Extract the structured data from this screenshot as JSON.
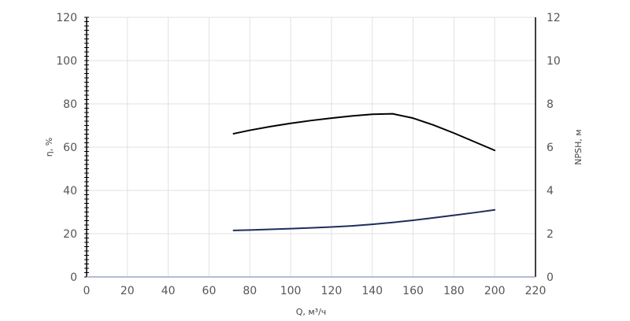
{
  "chart_data": {
    "type": "line",
    "title": "",
    "xlabel": "Q, м³/ч",
    "ylabel_left": "η, %",
    "ylabel_right": "NPSH, м",
    "xlim": [
      0,
      220
    ],
    "ylim_left": [
      0,
      120
    ],
    "ylim_right": [
      0,
      12
    ],
    "x_ticks": [
      0,
      20,
      40,
      60,
      80,
      100,
      120,
      140,
      160,
      180,
      200,
      220
    ],
    "y_left_ticks": [
      0,
      20,
      40,
      60,
      80,
      100,
      120
    ],
    "y_right_ticks": [
      0,
      2,
      4,
      6,
      8,
      10,
      12
    ],
    "grid": true,
    "series": [
      {
        "axis": "left",
        "color": "#000000",
        "x": [
          72,
          80,
          90,
          100,
          110,
          120,
          130,
          140,
          150,
          160,
          170,
          180,
          190,
          200
        ],
        "y": [
          66.2,
          67.8,
          69.5,
          71.0,
          72.3,
          73.4,
          74.4,
          75.2,
          75.4,
          73.4,
          70.2,
          66.5,
          62.5,
          58.5
        ]
      },
      {
        "axis": "right",
        "color": "#1f2d5c",
        "x": [
          72,
          80,
          90,
          100,
          110,
          120,
          130,
          140,
          150,
          160,
          170,
          180,
          190,
          200
        ],
        "y": [
          2.15,
          2.17,
          2.2,
          2.23,
          2.27,
          2.31,
          2.36,
          2.43,
          2.52,
          2.62,
          2.73,
          2.85,
          2.97,
          3.1
        ]
      }
    ]
  }
}
